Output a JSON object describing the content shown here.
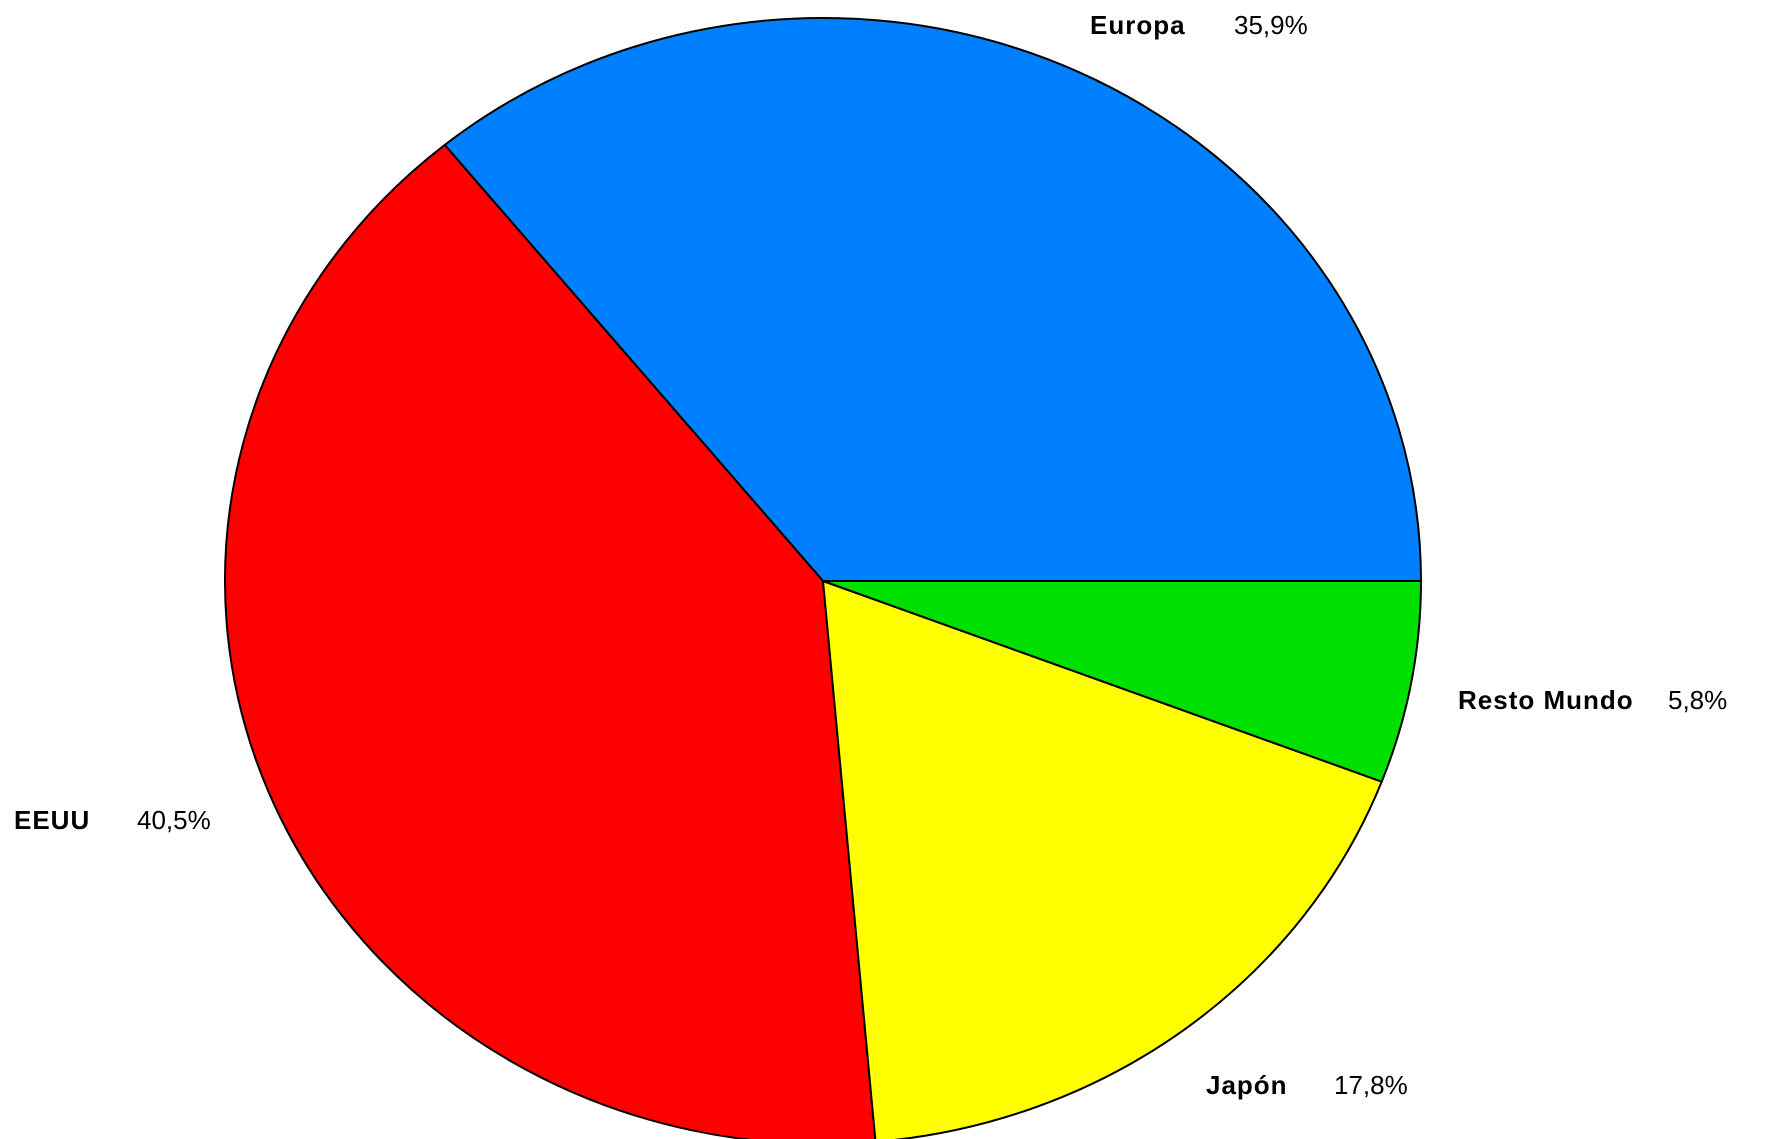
{
  "chart_data": {
    "type": "pie",
    "slices": [
      {
        "label": "Europa",
        "value": 35.9,
        "value_text": "35,9%",
        "color": "#0080FF"
      },
      {
        "label": "EEUU",
        "value": 40.5,
        "value_text": "40,5%",
        "color": "#FF0000"
      },
      {
        "label": "Japón",
        "value": 17.8,
        "value_text": "17,8%",
        "color": "#FFFF00"
      },
      {
        "label": "Resto Mundo",
        "value": 5.8,
        "value_text": "5,8%",
        "color": "#00E000"
      }
    ],
    "start_angle_deg": 0,
    "direction": "counterclockwise",
    "labels_outside": true
  }
}
